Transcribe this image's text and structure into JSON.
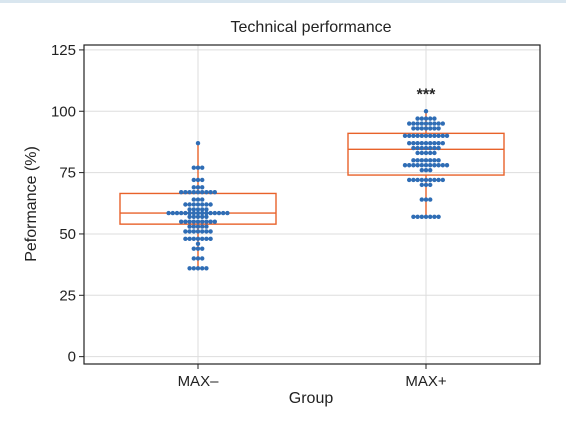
{
  "chart_data": {
    "type": "box-dot",
    "title": "Technical performance",
    "xlabel": "Group",
    "ylabel": "Peformance (%)",
    "ylim": [
      -3,
      127
    ],
    "yticks": [
      "0",
      "25",
      "50",
      "75",
      "100",
      "125"
    ],
    "ytick_values": [
      0,
      25,
      50,
      75,
      100,
      125
    ],
    "grid": true,
    "categories": [
      "MAX–",
      "MAX+"
    ],
    "groups": [
      {
        "name": "MAX–",
        "box": {
          "min": 36,
          "q1": 54,
          "median": 58.5,
          "q3": 66.5,
          "max": 87
        },
        "points": [
          {
            "y": 87,
            "n": 1
          },
          {
            "y": 77,
            "n": 3
          },
          {
            "y": 72,
            "n": 3
          },
          {
            "y": 69,
            "n": 3
          },
          {
            "y": 67,
            "n": 9
          },
          {
            "y": 64,
            "n": 3
          },
          {
            "y": 62,
            "n": 7
          },
          {
            "y": 60,
            "n": 5
          },
          {
            "y": 58.5,
            "n": 15
          },
          {
            "y": 57,
            "n": 5
          },
          {
            "y": 55,
            "n": 9
          },
          {
            "y": 53,
            "n": 5
          },
          {
            "y": 51,
            "n": 7
          },
          {
            "y": 48,
            "n": 7
          },
          {
            "y": 46,
            "n": 1
          },
          {
            "y": 44,
            "n": 3
          },
          {
            "y": 40,
            "n": 3
          },
          {
            "y": 36,
            "n": 5
          }
        ]
      },
      {
        "name": "MAX+",
        "annotation": "***",
        "box": {
          "min": 57,
          "q1": 74,
          "median": 84.5,
          "q3": 91,
          "max": 100
        },
        "points": [
          {
            "y": 100,
            "n": 1
          },
          {
            "y": 97,
            "n": 5
          },
          {
            "y": 95,
            "n": 9
          },
          {
            "y": 93,
            "n": 7
          },
          {
            "y": 90,
            "n": 11
          },
          {
            "y": 87,
            "n": 9
          },
          {
            "y": 85,
            "n": 7
          },
          {
            "y": 83,
            "n": 5
          },
          {
            "y": 80,
            "n": 7
          },
          {
            "y": 78,
            "n": 11
          },
          {
            "y": 76,
            "n": 3
          },
          {
            "y": 72,
            "n": 9
          },
          {
            "y": 70,
            "n": 3
          },
          {
            "y": 64,
            "n": 3
          },
          {
            "y": 57,
            "n": 7
          }
        ]
      }
    ],
    "colors": {
      "box": "#e8622a",
      "points": "#2f6db5",
      "grid": "#dddddd",
      "axis": "#222222"
    }
  }
}
